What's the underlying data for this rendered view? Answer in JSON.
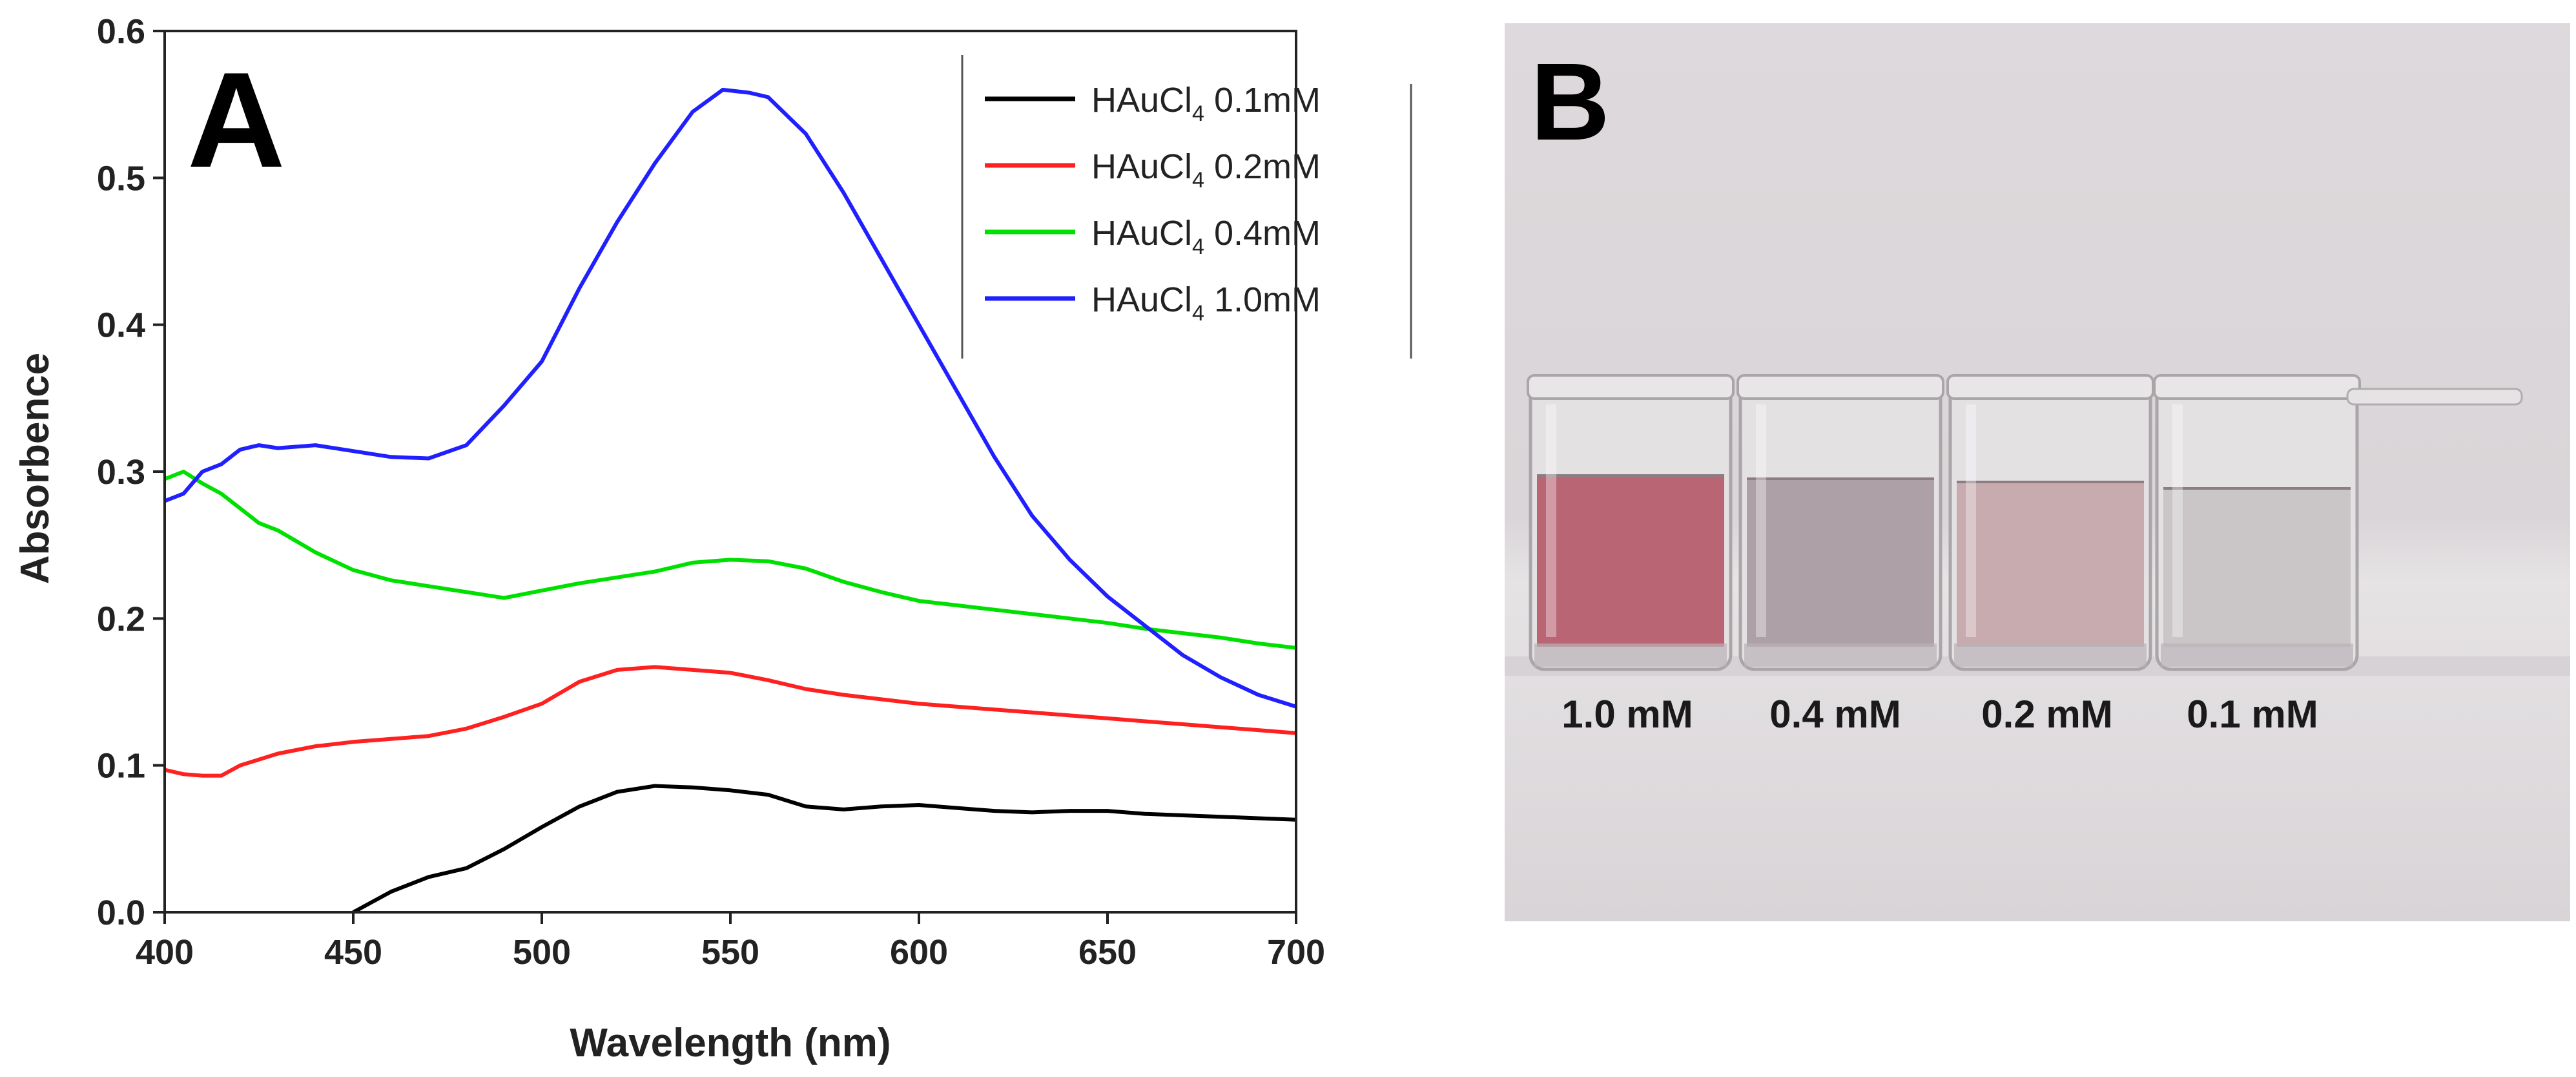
{
  "panel_a_label": "A",
  "panel_b_label": "B",
  "chart_data": {
    "type": "line",
    "xlabel": "Wavelength (nm)",
    "ylabel": "Absorbence",
    "xlim": [
      400,
      700
    ],
    "ylim": [
      0,
      0.6
    ],
    "xticks": [
      400,
      450,
      500,
      550,
      600,
      650,
      700
    ],
    "xtick_labels": [
      "400",
      "450",
      "500",
      "550",
      "600",
      "650",
      "700"
    ],
    "yticks": [
      0,
      0.1,
      0.2,
      0.3,
      0.4,
      0.5,
      0.6
    ],
    "ytick_labels": [
      "0.0",
      "0.1",
      "0.2",
      "0.3",
      "0.4",
      "0.5",
      "0.6"
    ],
    "grid": false,
    "legend_position": "top-right",
    "series": [
      {
        "name": "HAuCl4 0.1mM",
        "legend_main": "HAuCl",
        "legend_sub": "4",
        "legend_tail": " 0.1mM",
        "color": "#000000",
        "points": [
          [
            450,
            0.0
          ],
          [
            460,
            0.014
          ],
          [
            470,
            0.024
          ],
          [
            480,
            0.03
          ],
          [
            490,
            0.043
          ],
          [
            500,
            0.058
          ],
          [
            510,
            0.072
          ],
          [
            520,
            0.082
          ],
          [
            530,
            0.086
          ],
          [
            540,
            0.085
          ],
          [
            550,
            0.083
          ],
          [
            560,
            0.08
          ],
          [
            570,
            0.072
          ],
          [
            580,
            0.07
          ],
          [
            590,
            0.072
          ],
          [
            600,
            0.073
          ],
          [
            610,
            0.071
          ],
          [
            620,
            0.069
          ],
          [
            630,
            0.068
          ],
          [
            640,
            0.069
          ],
          [
            650,
            0.069
          ],
          [
            660,
            0.067
          ],
          [
            670,
            0.066
          ],
          [
            680,
            0.065
          ],
          [
            690,
            0.064
          ],
          [
            700,
            0.063
          ]
        ]
      },
      {
        "name": "HAuCl4 0.2mM",
        "legend_main": "HAuCl",
        "legend_sub": "4",
        "legend_tail": " 0.2mM",
        "color": "#ff2020",
        "points": [
          [
            400,
            0.097
          ],
          [
            405,
            0.094
          ],
          [
            410,
            0.093
          ],
          [
            415,
            0.093
          ],
          [
            420,
            0.1
          ],
          [
            430,
            0.108
          ],
          [
            440,
            0.113
          ],
          [
            450,
            0.116
          ],
          [
            460,
            0.118
          ],
          [
            470,
            0.12
          ],
          [
            480,
            0.125
          ],
          [
            490,
            0.133
          ],
          [
            500,
            0.142
          ],
          [
            510,
            0.157
          ],
          [
            520,
            0.165
          ],
          [
            530,
            0.167
          ],
          [
            540,
            0.165
          ],
          [
            550,
            0.163
          ],
          [
            560,
            0.158
          ],
          [
            570,
            0.152
          ],
          [
            580,
            0.148
          ],
          [
            590,
            0.145
          ],
          [
            600,
            0.142
          ],
          [
            610,
            0.14
          ],
          [
            620,
            0.138
          ],
          [
            630,
            0.136
          ],
          [
            640,
            0.134
          ],
          [
            650,
            0.132
          ],
          [
            660,
            0.13
          ],
          [
            670,
            0.128
          ],
          [
            680,
            0.126
          ],
          [
            690,
            0.124
          ],
          [
            700,
            0.122
          ]
        ]
      },
      {
        "name": "HAuCl4 0.4mM",
        "legend_main": "HAuCl",
        "legend_sub": "4",
        "legend_tail": " 0.4mM",
        "color": "#00e000",
        "points": [
          [
            400,
            0.295
          ],
          [
            405,
            0.3
          ],
          [
            410,
            0.292
          ],
          [
            415,
            0.285
          ],
          [
            420,
            0.275
          ],
          [
            425,
            0.265
          ],
          [
            430,
            0.26
          ],
          [
            440,
            0.245
          ],
          [
            450,
            0.233
          ],
          [
            460,
            0.226
          ],
          [
            470,
            0.222
          ],
          [
            480,
            0.218
          ],
          [
            490,
            0.214
          ],
          [
            500,
            0.219
          ],
          [
            510,
            0.224
          ],
          [
            520,
            0.228
          ],
          [
            530,
            0.232
          ],
          [
            540,
            0.238
          ],
          [
            550,
            0.24
          ],
          [
            560,
            0.239
          ],
          [
            570,
            0.234
          ],
          [
            580,
            0.225
          ],
          [
            590,
            0.218
          ],
          [
            600,
            0.212
          ],
          [
            610,
            0.209
          ],
          [
            620,
            0.206
          ],
          [
            630,
            0.203
          ],
          [
            640,
            0.2
          ],
          [
            650,
            0.197
          ],
          [
            660,
            0.193
          ],
          [
            670,
            0.19
          ],
          [
            680,
            0.187
          ],
          [
            690,
            0.183
          ],
          [
            700,
            0.18
          ]
        ]
      },
      {
        "name": "HAuCl4 1.0mM",
        "legend_main": "HAuCl",
        "legend_sub": "4",
        "legend_tail": " 1.0mM",
        "color": "#2020ff",
        "points": [
          [
            400,
            0.28
          ],
          [
            405,
            0.285
          ],
          [
            410,
            0.3
          ],
          [
            415,
            0.305
          ],
          [
            420,
            0.315
          ],
          [
            425,
            0.318
          ],
          [
            430,
            0.316
          ],
          [
            440,
            0.318
          ],
          [
            450,
            0.314
          ],
          [
            460,
            0.31
          ],
          [
            470,
            0.309
          ],
          [
            480,
            0.318
          ],
          [
            490,
            0.345
          ],
          [
            500,
            0.375
          ],
          [
            510,
            0.425
          ],
          [
            520,
            0.47
          ],
          [
            530,
            0.51
          ],
          [
            540,
            0.545
          ],
          [
            548,
            0.56
          ],
          [
            555,
            0.558
          ],
          [
            560,
            0.555
          ],
          [
            570,
            0.53
          ],
          [
            580,
            0.49
          ],
          [
            590,
            0.445
          ],
          [
            600,
            0.4
          ],
          [
            610,
            0.355
          ],
          [
            620,
            0.31
          ],
          [
            630,
            0.27
          ],
          [
            640,
            0.24
          ],
          [
            650,
            0.215
          ],
          [
            660,
            0.195
          ],
          [
            670,
            0.175
          ],
          [
            680,
            0.16
          ],
          [
            690,
            0.148
          ],
          [
            700,
            0.14
          ]
        ]
      }
    ]
  },
  "photo": {
    "vial_labels": [
      "1.0 mM",
      "0.4 mM",
      "0.2 mM",
      "0.1 mM"
    ],
    "vial_colors": [
      "#b65a6a",
      "#a89aa2",
      "#c4a6aa",
      "#c8c2c4"
    ]
  }
}
